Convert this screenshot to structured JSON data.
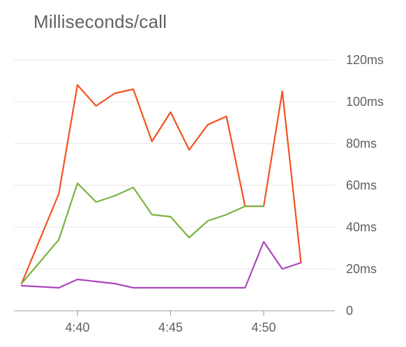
{
  "chart_data": {
    "type": "line",
    "title": "Milliseconds/call",
    "xlabel": "",
    "ylabel": "",
    "x": [
      "4:37",
      "4:39",
      "4:40",
      "4:41",
      "4:42",
      "4:43",
      "4:44",
      "4:45",
      "4:46",
      "4:47",
      "4:48",
      "4:49",
      "4:50",
      "4:51",
      "4:52"
    ],
    "x_ticks": [
      "4:40",
      "4:45",
      "4:50"
    ],
    "y_ticks": [
      "0",
      "20ms",
      "40ms",
      "60ms",
      "80ms",
      "100ms",
      "120ms"
    ],
    "ylim": [
      0,
      120
    ],
    "y_unit": "ms",
    "grid": true,
    "y_axis_position": "right",
    "series": [
      {
        "color": "#f4511e",
        "values": [
          13,
          56,
          108,
          98,
          104,
          106,
          81,
          95,
          77,
          89,
          93,
          50,
          50,
          105,
          23
        ]
      },
      {
        "color": "#7cb342",
        "values": [
          13,
          34,
          61,
          52,
          55,
          59,
          46,
          45,
          35,
          43,
          46,
          50,
          50,
          null,
          null
        ]
      },
      {
        "color": "#ab47bc",
        "values": [
          12,
          11,
          15,
          14,
          13,
          11,
          11,
          11,
          11,
          11,
          11,
          11,
          33,
          20,
          23
        ]
      }
    ]
  }
}
